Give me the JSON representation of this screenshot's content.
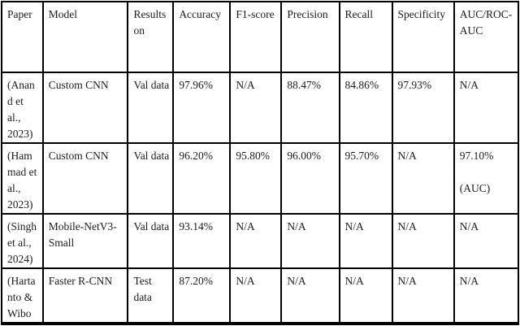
{
  "colors": {
    "text": "#1c1c1c",
    "border": "#000000",
    "background": "#ffffff"
  },
  "table": {
    "headers": [
      "Paper",
      "Model",
      "Results\non",
      "Accuracy",
      "F1-score",
      "Precision",
      "Recall",
      "Specificity",
      "AUC/ROC-\nAUC"
    ],
    "rows": [
      [
        "(Anan\nd et\nal.,\n2023)",
        "Custom CNN",
        "Val data",
        "97.96%",
        "N/A",
        "88.47%",
        "84.86%",
        "97.93%",
        "N/A"
      ],
      [
        "(Ham\nmad et\nal.,\n2023)",
        "Custom CNN",
        "Val data",
        "96.20%",
        "95.80%",
        "96.00%",
        "95.70%",
        "N/A",
        "97.10%\n\n(AUC)"
      ],
      [
        "(Singh\net al.,\n2024)",
        "Mobile-NetV3-\nSmall",
        "Val data",
        "93.14%",
        "N/A",
        "N/A",
        "N/A",
        "N/A",
        "N/A"
      ],
      [
        "(Harta\nnto &\nWibo",
        "Faster R-CNN",
        "Test\ndata",
        "87.20%",
        "N/A",
        "N/A",
        "N/A",
        "N/A",
        "N/A"
      ]
    ]
  }
}
